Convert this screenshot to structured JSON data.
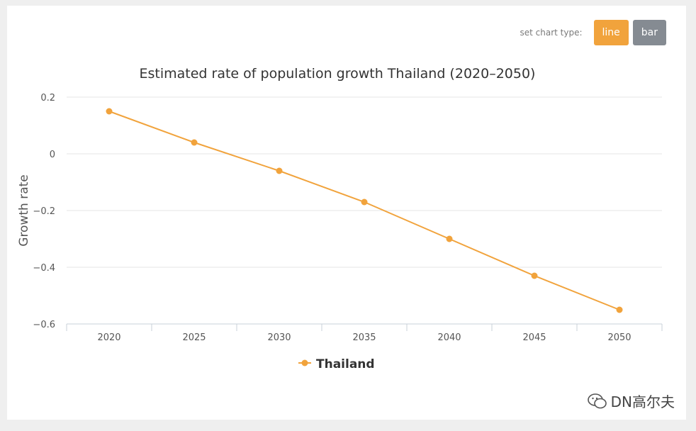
{
  "controls": {
    "label": "set chart type:",
    "line_label": "line",
    "bar_label": "bar",
    "active_color": "#f1a33c",
    "inactive_color": "#858b92"
  },
  "chart_data": {
    "type": "line",
    "title": "Estimated rate of population growth Thailand (2020–2050)",
    "xlabel": "",
    "ylabel": "Growth rate",
    "categories": [
      "2020",
      "2025",
      "2030",
      "2035",
      "2040",
      "2045",
      "2050"
    ],
    "series": [
      {
        "name": "Thailand",
        "color": "#f1a33c",
        "values": [
          0.15,
          0.04,
          -0.06,
          -0.17,
          -0.3,
          -0.43,
          -0.55
        ]
      }
    ],
    "ylim": [
      -0.6,
      0.2
    ],
    "yticks": [
      0.2,
      0,
      -0.2,
      -0.4,
      -0.6
    ],
    "ytick_labels": [
      "0.2",
      "0",
      "−0.2",
      "−0.4",
      "−0.6"
    ],
    "grid": true,
    "legend": "bottom-center"
  },
  "watermark": {
    "icon": "wechat-icon",
    "text": "DN高尔夫"
  }
}
